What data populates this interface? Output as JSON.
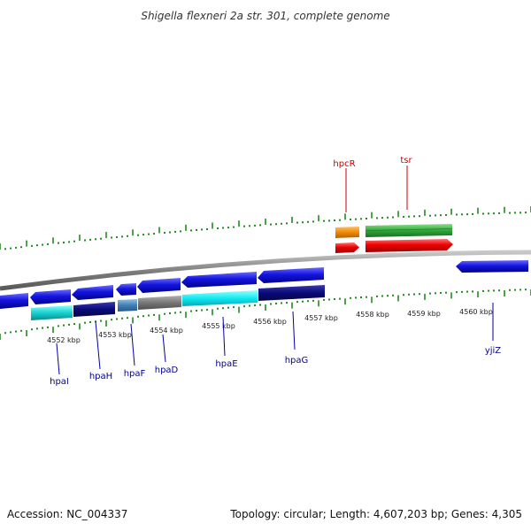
{
  "title": "Shigella flexneri 2a str. 301, complete genome",
  "footer": {
    "accession": "Accession: NC_004337",
    "summary": "Topology: circular; Length: 4,607,203 bp; Genes: 4,305"
  },
  "colors": {
    "forward_label": "#cc0000",
    "reverse_label": "#000099",
    "backbone": "#808080",
    "ticks": "#228b22"
  },
  "axis_labels": [
    "4552 kbp",
    "4553 kbp",
    "4554 kbp",
    "4555 kbp",
    "4556 kbp",
    "4557 kbp",
    "4558 kbp",
    "4559 kbp",
    "4560 kbp"
  ],
  "forward_genes": [
    {
      "name": "hpcR",
      "color": "#e8820a",
      "category_color": "#f39c12"
    },
    {
      "name": "tsr",
      "color": "#e00000",
      "category_color": "#2e9e3a"
    }
  ],
  "reverse_genes": [
    {
      "name": "hpaI",
      "color": "#1a1adc",
      "category_color": "#1cc4c4"
    },
    {
      "name": "hpaH",
      "color": "#1a1adc",
      "category_color": "#0a0a7a"
    },
    {
      "name": "hpaF",
      "color": "#1a1adc",
      "category_color": "#3f7fb6"
    },
    {
      "name": "hpaD",
      "color": "#1a1adc",
      "category_color": "#777777"
    },
    {
      "name": "hpaE",
      "color": "#1a1adc",
      "category_color": "#12e4ee"
    },
    {
      "name": "hpaG",
      "color": "#1a1adc",
      "category_color": "#0a0a7a"
    },
    {
      "name": "yjiZ",
      "color": "#1a1adc",
      "category_color": ""
    }
  ]
}
